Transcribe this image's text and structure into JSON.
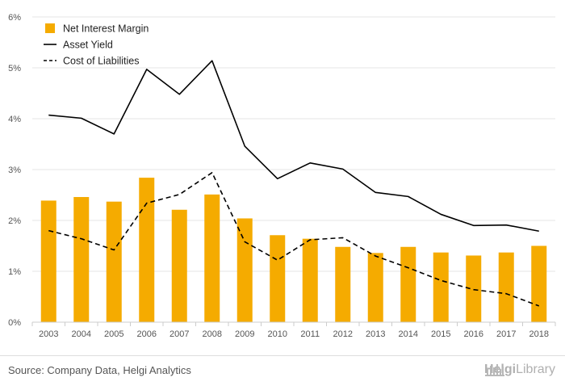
{
  "chart_data": {
    "type": "bar",
    "categories": [
      "2003",
      "2004",
      "2005",
      "2006",
      "2007",
      "2008",
      "2009",
      "2010",
      "2011",
      "2012",
      "2013",
      "2014",
      "2015",
      "2016",
      "2017",
      "2018"
    ],
    "series": [
      {
        "name": "Net Interest Margin",
        "kind": "bar",
        "color": "#f5ab00",
        "values": [
          2.39,
          2.46,
          2.37,
          2.84,
          2.21,
          2.51,
          2.04,
          1.71,
          1.64,
          1.48,
          1.36,
          1.48,
          1.37,
          1.31,
          1.37,
          1.5
        ]
      },
      {
        "name": "Asset Yield",
        "kind": "line",
        "style": "solid",
        "color": "#000000",
        "values": [
          4.07,
          4.01,
          3.7,
          4.97,
          4.48,
          5.14,
          3.46,
          2.82,
          3.13,
          3.01,
          2.55,
          2.47,
          2.12,
          1.9,
          1.91,
          1.79
        ]
      },
      {
        "name": "Cost of Liabilities",
        "kind": "line",
        "style": "dashed",
        "color": "#000000",
        "values": [
          1.8,
          1.64,
          1.42,
          2.34,
          2.51,
          2.94,
          1.58,
          1.22,
          1.62,
          1.66,
          1.3,
          1.07,
          0.82,
          0.64,
          0.56,
          0.32
        ]
      }
    ],
    "yticks": [
      "0%",
      "1%",
      "2%",
      "3%",
      "4%",
      "5%",
      "6%"
    ],
    "ylim": [
      0,
      6
    ],
    "grid": true,
    "legend_position": "top-left"
  },
  "footer": {
    "source": "Source: Company Data, Helgi Analytics",
    "brand_helgi": "Helgi",
    "brand_library": "Library"
  },
  "icons": {
    "brand_logo": "library-building-icon"
  }
}
